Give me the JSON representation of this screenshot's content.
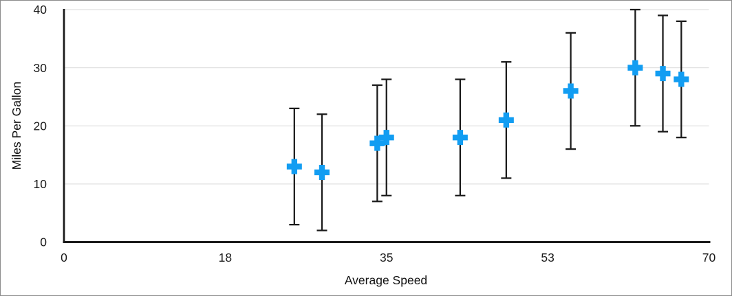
{
  "figure": {
    "background": "#ffffff",
    "border_color": "#8b8b8b"
  },
  "chart_data": {
    "type": "scatter",
    "title": "",
    "xlabel": "Average Speed",
    "ylabel": "Miles Per Gallon",
    "xlim": [
      0,
      70
    ],
    "ylim": [
      0,
      40
    ],
    "x_tick_labels": [
      "0",
      "18",
      "35",
      "53",
      "70"
    ],
    "x_tick_values": [
      0,
      17.5,
      35,
      52.5,
      70
    ],
    "y_tick_labels": [
      "0",
      "10",
      "20",
      "30",
      "40"
    ],
    "y_tick_values": [
      0,
      10,
      20,
      30,
      40
    ],
    "grid": "horizontal",
    "legend": "none",
    "marker_style": "plus",
    "marker_color": "#129DF2",
    "error_bar_color": "#1a1a1a",
    "gridline_color": "#e1e1e1",
    "axis_color": "#1a1a1a",
    "error_bars": {
      "type": "absolute",
      "plus": 10,
      "minus": 10
    },
    "series": [
      {
        "name": "Miles Per Gallon",
        "points": [
          {
            "x": 25,
            "y": 13,
            "y_low": 3,
            "y_high": 23
          },
          {
            "x": 28,
            "y": 12,
            "y_low": 2,
            "y_high": 22
          },
          {
            "x": 34,
            "y": 17,
            "y_low": 7,
            "y_high": 27
          },
          {
            "x": 35,
            "y": 18,
            "y_low": 8,
            "y_high": 28
          },
          {
            "x": 43,
            "y": 18,
            "y_low": 8,
            "y_high": 28
          },
          {
            "x": 48,
            "y": 21,
            "y_low": 11,
            "y_high": 31
          },
          {
            "x": 55,
            "y": 26,
            "y_low": 16,
            "y_high": 36
          },
          {
            "x": 62,
            "y": 30,
            "y_low": 20,
            "y_high": 40
          },
          {
            "x": 65,
            "y": 29,
            "y_low": 19,
            "y_high": 39
          },
          {
            "x": 67,
            "y": 28,
            "y_low": 18,
            "y_high": 38
          }
        ]
      }
    ]
  }
}
